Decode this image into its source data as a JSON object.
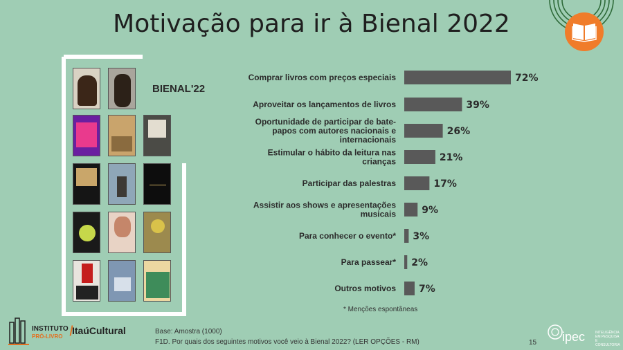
{
  "title": "Motivação para ir à Bienal 2022",
  "bienal_label": "BIENAL'22",
  "chart_data": {
    "type": "bar",
    "orientation": "horizontal",
    "categories": [
      "Comprar livros com preços especiais",
      "Aproveitar os lançamentos de livros",
      "Oportunidade de participar de bate-papos com autores nacionais e internacionais",
      "Estimular o hábito da leitura nas crianças",
      "Participar das palestras",
      "Assistir aos shows e apresentações musicais",
      "Para conhecer o evento*",
      "Para passear*",
      "Outros motivos"
    ],
    "category_lines": [
      [
        "Comprar livros com preços especiais"
      ],
      [
        "Aproveitar os lançamentos de livros"
      ],
      [
        "Oportunidade de participar de bate-",
        "papos com autores nacionais e",
        "internacionais"
      ],
      [
        "Estimular o hábito da leitura nas",
        "crianças"
      ],
      [
        "Participar das palestras"
      ],
      [
        "Assistir aos shows e apresentações",
        "musicais"
      ],
      [
        "Para conhecer o evento*"
      ],
      [
        "Para passear*"
      ],
      [
        "Outros motivos"
      ]
    ],
    "values": [
      72,
      39,
      26,
      21,
      17,
      9,
      3,
      2,
      7
    ],
    "value_labels": [
      "72%",
      "39%",
      "26%",
      "21%",
      "17%",
      "9%",
      "3%",
      "2%",
      "7%"
    ],
    "unit": "%",
    "xlim": [
      0,
      100
    ],
    "bar_color": "#595959",
    "grid": false
  },
  "note": "* Menções espontâneas",
  "base": "Base: Amostra (1000)",
  "question": "F1D. Por quais dos seguintes motivos você veio à Bienal 2022? (LER OPÇÕES - RM)",
  "page_number": "15",
  "logos": {
    "instituto": "INSTITUTO",
    "instituto_sub": "PRÓ-LIVRO",
    "itau": "ItaúCultural",
    "ipec": "ipec",
    "ipec_sub_1": "INTELIGÊNCIA",
    "ipec_sub_2": "EM PESQUISA",
    "ipec_sub_3": "E CONSULTORIA"
  },
  "colors": {
    "background": "#9fcdb4",
    "accent": "#f07c2a",
    "deco_lines": "#2f6b3a"
  }
}
